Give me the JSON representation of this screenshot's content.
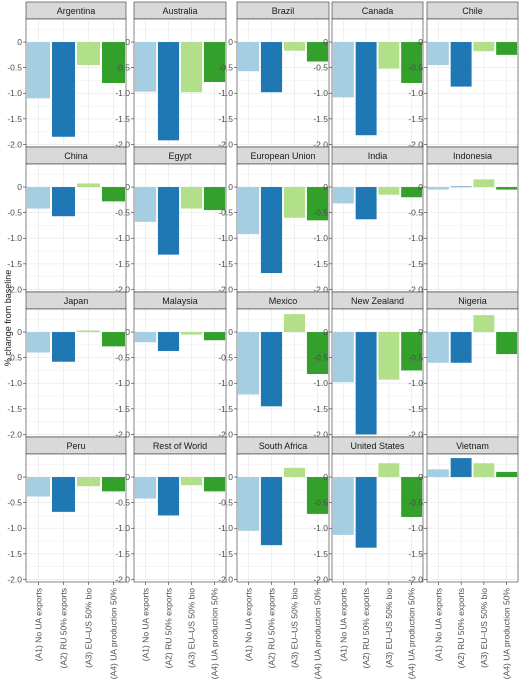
{
  "chart_data": {
    "type": "bar",
    "ylabel": "% change from baseline",
    "ylim": [
      -2.05,
      0.45
    ],
    "yticks": [
      0,
      -0.5,
      -1.0,
      -1.5,
      -2.0
    ],
    "ytick_labels": [
      "0",
      "-0.5",
      "-1.0",
      "-1.5",
      "-2.0"
    ],
    "grid": true,
    "legend": "none",
    "categories": [
      "(A1) No UA exports",
      "(A2) RU 50% exports",
      "(A3) EU–US 50% bio",
      "(A4) UA production 50%"
    ],
    "colors": [
      "#a6cee3",
      "#1f78b4",
      "#b2df8a",
      "#33a02c"
    ],
    "panels": [
      {
        "name": "Argentina",
        "values": [
          -1.1,
          -1.85,
          -0.45,
          -0.8
        ]
      },
      {
        "name": "Australia",
        "values": [
          -0.97,
          -1.92,
          -0.98,
          -0.78
        ]
      },
      {
        "name": "Brazil",
        "values": [
          -0.57,
          -0.98,
          -0.17,
          -0.38
        ]
      },
      {
        "name": "Canada",
        "values": [
          -1.08,
          -1.82,
          -0.52,
          -0.8
        ]
      },
      {
        "name": "Chile",
        "values": [
          -0.45,
          -0.87,
          -0.18,
          -0.25
        ]
      },
      {
        "name": "China",
        "values": [
          -0.42,
          -0.57,
          0.07,
          -0.28
        ]
      },
      {
        "name": "Egypt",
        "values": [
          -0.68,
          -1.32,
          -0.42,
          -0.45
        ]
      },
      {
        "name": "European Union",
        "values": [
          -0.92,
          -1.68,
          -0.6,
          -0.65
        ]
      },
      {
        "name": "India",
        "values": [
          -0.32,
          -0.63,
          -0.15,
          -0.2
        ]
      },
      {
        "name": "Indonesia",
        "values": [
          -0.05,
          0.01,
          0.15,
          -0.05
        ]
      },
      {
        "name": "Japan",
        "values": [
          -0.4,
          -0.58,
          0.03,
          -0.28
        ]
      },
      {
        "name": "Malaysia",
        "values": [
          -0.2,
          -0.37,
          -0.05,
          -0.16
        ]
      },
      {
        "name": "Mexico",
        "values": [
          -1.22,
          -1.45,
          0.35,
          -0.82
        ]
      },
      {
        "name": "New Zealand",
        "values": [
          -0.98,
          -2.0,
          -0.93,
          -0.75
        ]
      },
      {
        "name": "Nigeria",
        "values": [
          -0.6,
          -0.6,
          0.33,
          -0.43
        ]
      },
      {
        "name": "Peru",
        "values": [
          -0.38,
          -0.68,
          -0.18,
          -0.28
        ]
      },
      {
        "name": "Rest of World",
        "values": [
          -0.42,
          -0.75,
          -0.16,
          -0.28
        ]
      },
      {
        "name": "South Africa",
        "values": [
          -1.05,
          -1.33,
          0.18,
          -0.72
        ]
      },
      {
        "name": "United States",
        "values": [
          -1.13,
          -1.38,
          0.27,
          -0.78
        ]
      },
      {
        "name": "Vietnam",
        "values": [
          0.15,
          0.37,
          0.27,
          0.1
        ]
      }
    ]
  }
}
